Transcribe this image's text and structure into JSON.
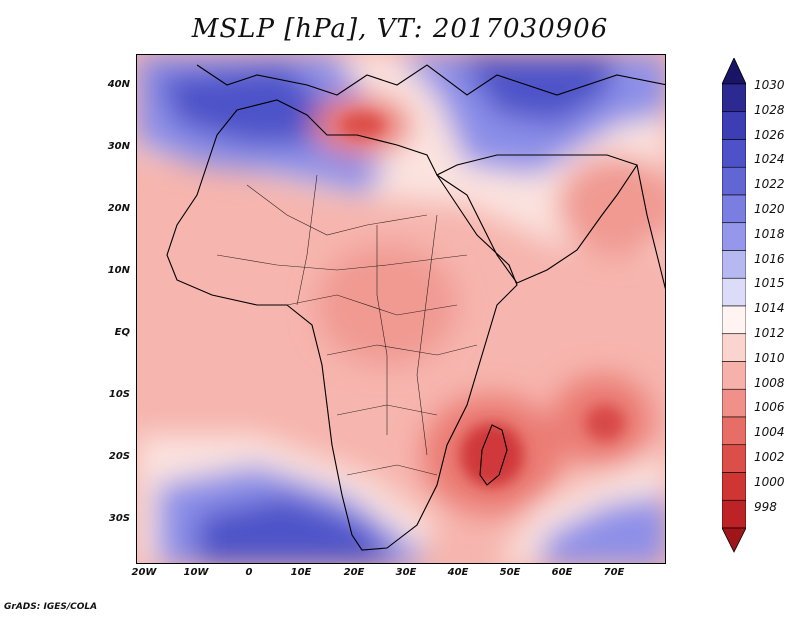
{
  "title": "MSLP [hPa], VT: 2017030906",
  "footer": "GrADS: IGES/COLA",
  "map": {
    "y_ticks": [
      "40N",
      "30N",
      "20N",
      "10N",
      "EQ",
      "10S",
      "20S",
      "30S"
    ],
    "x_ticks": [
      "20W",
      "10W",
      "0",
      "10E",
      "20E",
      "30E",
      "40E",
      "50E",
      "60E",
      "70E"
    ],
    "lon_range": [
      -22,
      80
    ],
    "lat_range": [
      -37,
      45
    ]
  },
  "colorbar": {
    "labels": [
      "1030",
      "1028",
      "1026",
      "1024",
      "1022",
      "1020",
      "1018",
      "1016",
      "1015",
      "1014",
      "1012",
      "1010",
      "1008",
      "1006",
      "1004",
      "1002",
      "1000",
      "998"
    ],
    "colors": [
      "#1a1466",
      "#2c2a92",
      "#3d3eb4",
      "#4e52c8",
      "#6266d4",
      "#7a7ee0",
      "#9598ea",
      "#b6b8f2",
      "#dcdcf8",
      "#fff4f2",
      "#fbd3cf",
      "#f6b1aa",
      "#f09088",
      "#e76e66",
      "#dc4e48",
      "#cf3533",
      "#bd2226",
      "#a0151a"
    ]
  }
}
